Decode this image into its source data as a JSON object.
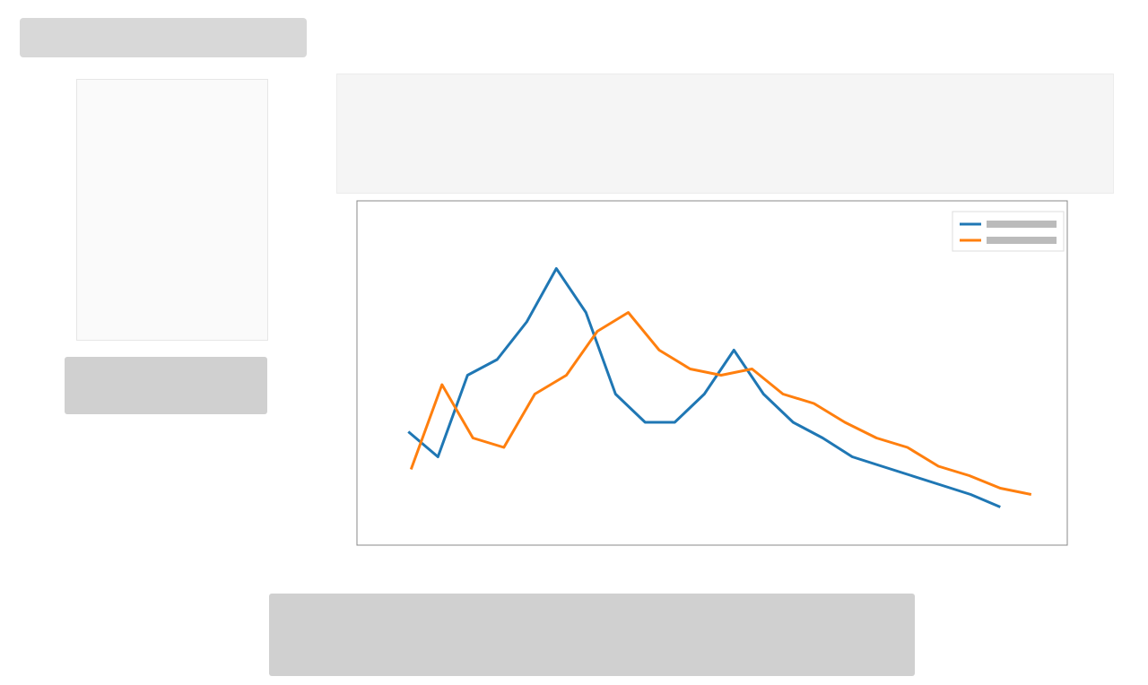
{
  "chart_data": {
    "type": "line",
    "xlim": [
      0,
      100
    ],
    "ylim": [
      0,
      100
    ],
    "series": [
      {
        "color": "#1f77b4",
        "x": [
          4.7,
          9.1,
          13.5,
          17.9,
          22.3,
          26.7,
          31.1,
          35.5,
          39.9,
          44.3,
          48.7,
          53.1,
          57.5,
          61.9,
          66.3,
          70.7,
          75.1,
          79.5,
          83.9,
          88.3,
          92.7
        ],
        "values": [
          31,
          23,
          49,
          54,
          66,
          83,
          69,
          43,
          34,
          34,
          43,
          57,
          43,
          34,
          29,
          23,
          20,
          17,
          14,
          11,
          7
        ]
      },
      {
        "color": "#ff7f0e",
        "x": [
          5.1,
          9.7,
          14.3,
          18.9,
          23.5,
          28.2,
          32.8,
          37.4,
          42.0,
          46.6,
          51.2,
          55.8,
          60.4,
          65.0,
          69.6,
          74.3,
          78.9,
          83.5,
          88.1,
          92.7,
          97.3
        ],
        "values": [
          19,
          46,
          29,
          26,
          43,
          49,
          63,
          69,
          57,
          51,
          49,
          51,
          43,
          40,
          34,
          29,
          26,
          20,
          17,
          13,
          11
        ]
      }
    ]
  }
}
